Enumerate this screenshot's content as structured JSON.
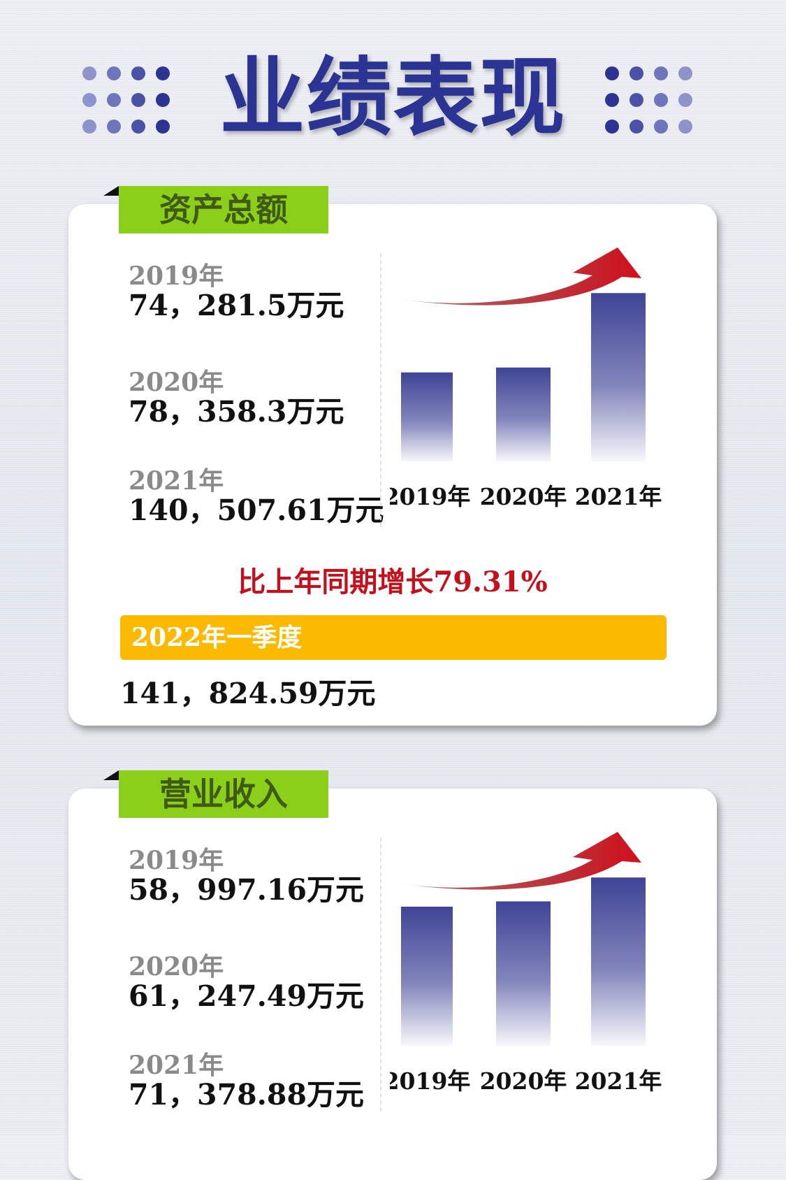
{
  "page": {
    "title": "业绩表现"
  },
  "colors": {
    "title": "#2b3492",
    "tab": "#8ccf1a",
    "bar": "#3f4496",
    "arrow": "#d0101c",
    "quarter": "#fbba00",
    "growth": "#c2101c"
  },
  "sections": [
    {
      "tab_label": "资产总额",
      "records": [
        {
          "year": "2019年",
          "value": "74，281.5万元"
        },
        {
          "year": "2020年",
          "value": "78，358.3万元"
        },
        {
          "year": "2021年",
          "value": "140，507.61万元"
        }
      ],
      "growth_text": "比上年同期增长79.31%",
      "quarter_label": "2022年一季度",
      "quarter_value": "141，824.59万元"
    },
    {
      "tab_label": "营业收入",
      "records": [
        {
          "year": "2019年",
          "value": "58，997.16万元"
        },
        {
          "year": "2020年",
          "value": "61，247.49万元"
        },
        {
          "year": "2021年",
          "value": "71，378.88万元"
        }
      ]
    }
  ],
  "chart_data": [
    {
      "type": "bar",
      "categories": [
        "2019年",
        "2020年",
        "2021年"
      ],
      "values": [
        74281.5,
        78358.3,
        140507.61
      ],
      "title": "资产总额",
      "xlabel": "",
      "ylabel": "",
      "grid": false
    },
    {
      "type": "bar",
      "categories": [
        "2019年",
        "2020年",
        "2021年"
      ],
      "values": [
        58997.16,
        61247.49,
        71378.88
      ],
      "title": "营业收入",
      "xlabel": "",
      "ylabel": "",
      "grid": false
    }
  ]
}
